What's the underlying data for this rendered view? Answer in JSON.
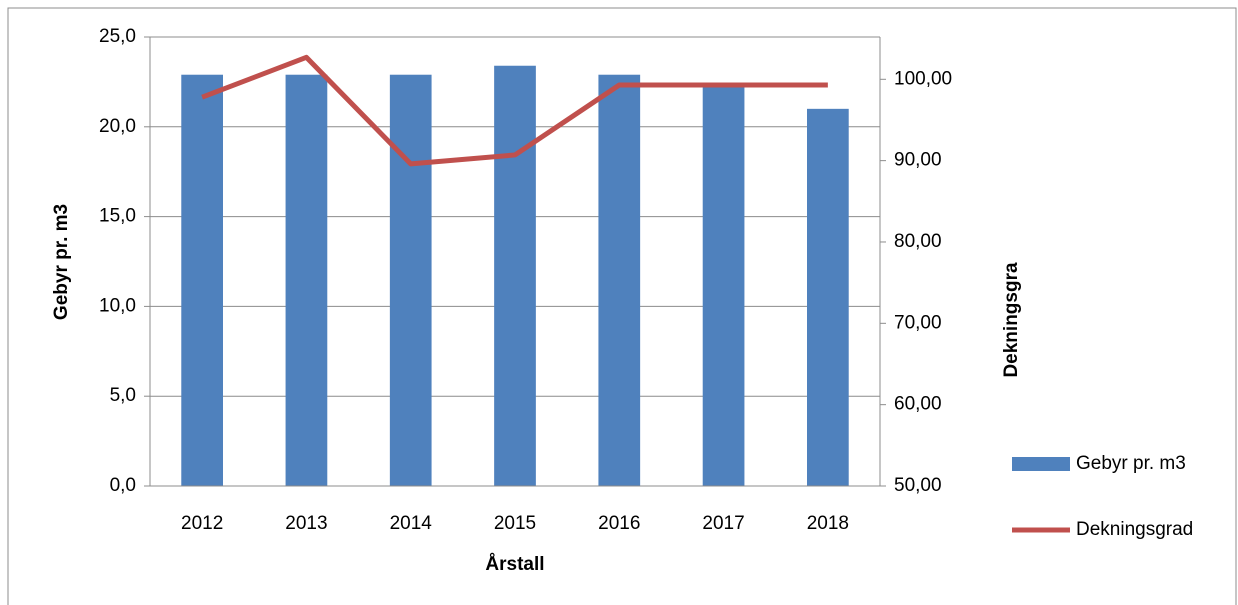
{
  "chart_data": {
    "type": "bar-line",
    "x_label": "Årstall",
    "y_label": "Gebyr pr. m3",
    "y2_label": "Dekningsgra",
    "categories": [
      "2012",
      "2013",
      "2014",
      "2015",
      "2016",
      "2017",
      "2018"
    ],
    "series": [
      {
        "name": "Gebyr pr. m3",
        "color": "#4f81bd",
        "type": "bar",
        "values": [
          22.9,
          22.9,
          22.9,
          23.4,
          22.9,
          22.3,
          21.0
        ]
      },
      {
        "name": "Dekningsgrad",
        "color": "#c0504d",
        "type": "line",
        "axis": "y2",
        "values": [
          97.8,
          102.7,
          89.6,
          90.7,
          99.3,
          99.3,
          99.3
        ]
      }
    ],
    "ylim": [
      0,
      25
    ],
    "yticks": [
      {
        "value": 0,
        "label": "0,0"
      },
      {
        "value": 5,
        "label": "5,0"
      },
      {
        "value": 10,
        "label": "10,0"
      },
      {
        "value": 15,
        "label": "15,0"
      },
      {
        "value": 20,
        "label": "20,0"
      },
      {
        "value": 25,
        "label": "25,0"
      }
    ],
    "y2lim": [
      50,
      105.2
    ],
    "y2ticks": [
      {
        "value": 50,
        "label": "50,00"
      },
      {
        "value": 60,
        "label": "60,00"
      },
      {
        "value": 70,
        "label": "70,00"
      },
      {
        "value": 80,
        "label": "80,00"
      },
      {
        "value": 90,
        "label": "90,00"
      },
      {
        "value": 100,
        "label": "100,00"
      }
    ],
    "grid": true,
    "legend": "right"
  }
}
